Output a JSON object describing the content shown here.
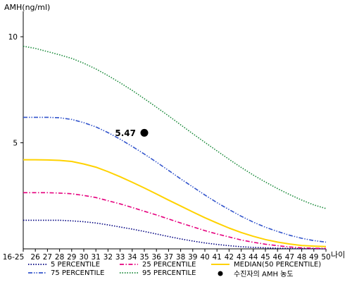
{
  "chart_data": {
    "type": "line",
    "ylabel": "AMH(ng/ml)",
    "xlabel": "나이",
    "ylim": [
      0,
      11
    ],
    "y_ticks": [
      5,
      10
    ],
    "x": [
      "16-25",
      "26",
      "27",
      "28",
      "29",
      "30",
      "31",
      "32",
      "33",
      "34",
      "35",
      "36",
      "37",
      "38",
      "39",
      "40",
      "41",
      "42",
      "43",
      "44",
      "45",
      "46",
      "47",
      "48",
      "49",
      "50"
    ],
    "series": [
      {
        "name": "5 PERCENTILE",
        "color": "#000080",
        "dash": "dotted",
        "values": [
          1.35,
          1.35,
          1.35,
          1.35,
          1.32,
          1.28,
          1.22,
          1.13,
          1.03,
          0.93,
          0.82,
          0.7,
          0.58,
          0.47,
          0.37,
          0.28,
          0.21,
          0.15,
          0.1,
          0.07,
          0.05,
          0.03,
          0.02,
          0.01,
          0.01,
          0.0
        ]
      },
      {
        "name": "25 PERCENTILE",
        "color": "#e6007e",
        "dash": "dashdot",
        "values": [
          2.65,
          2.65,
          2.65,
          2.63,
          2.6,
          2.52,
          2.42,
          2.27,
          2.12,
          1.95,
          1.77,
          1.6,
          1.41,
          1.22,
          1.04,
          0.86,
          0.7,
          0.56,
          0.42,
          0.31,
          0.22,
          0.15,
          0.09,
          0.05,
          0.03,
          0.02
        ]
      },
      {
        "name": "MEDIAN(50 PERCENTILE)",
        "color": "#ffd200",
        "dash": "solid",
        "values": [
          4.2,
          4.2,
          4.19,
          4.17,
          4.12,
          4.0,
          3.85,
          3.64,
          3.4,
          3.14,
          2.87,
          2.59,
          2.3,
          2.02,
          1.74,
          1.47,
          1.22,
          0.98,
          0.77,
          0.59,
          0.44,
          0.32,
          0.23,
          0.16,
          0.13,
          0.11
        ]
      },
      {
        "name": "75 PERCENTILE",
        "color": "#3355cc",
        "dash": "dashdotdot",
        "values": [
          6.2,
          6.2,
          6.2,
          6.18,
          6.1,
          5.95,
          5.75,
          5.48,
          5.17,
          4.83,
          4.47,
          4.09,
          3.7,
          3.3,
          2.92,
          2.54,
          2.18,
          1.85,
          1.54,
          1.26,
          1.02,
          0.82,
          0.64,
          0.5,
          0.39,
          0.32
        ]
      },
      {
        "name": "95 PERCENTILE",
        "color": "#1a8a3a",
        "dash": "dotted",
        "values": [
          9.55,
          9.45,
          9.3,
          9.15,
          8.98,
          8.75,
          8.48,
          8.17,
          7.83,
          7.47,
          7.08,
          6.68,
          6.27,
          5.85,
          5.43,
          5.02,
          4.62,
          4.22,
          3.84,
          3.48,
          3.15,
          2.84,
          2.56,
          2.3,
          2.07,
          1.9
        ]
      }
    ],
    "point": {
      "name": "수진자의 AMH 농도",
      "x": "35",
      "y": 5.47,
      "label": "5.47"
    }
  }
}
